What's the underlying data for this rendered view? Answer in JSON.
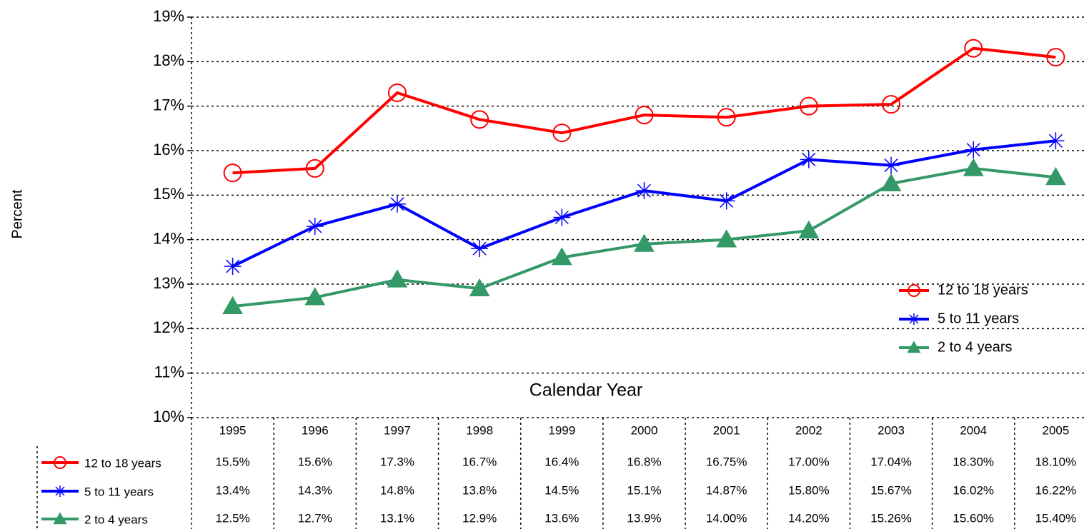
{
  "chart_data": {
    "type": "line",
    "y_label": "Percent",
    "x_label": "Calendar Year",
    "categories": [
      "1995",
      "1996",
      "1997",
      "1998",
      "1999",
      "2000",
      "2001",
      "2002",
      "2003",
      "2004",
      "2005"
    ],
    "series": [
      {
        "name": "12 to 18 years",
        "color": "#ff0000",
        "marker": "circle",
        "values": [
          15.5,
          15.6,
          17.3,
          16.7,
          16.4,
          16.8,
          16.75,
          17.0,
          17.04,
          18.3,
          18.1
        ],
        "value_labels": [
          "15.5%",
          "15.6%",
          "17.3%",
          "16.7%",
          "16.4%",
          "16.8%",
          "16.75%",
          "17.00%",
          "17.04%",
          "18.30%",
          "18.10%"
        ]
      },
      {
        "name": "5 to 11 years",
        "color": "#0000ff",
        "marker": "star",
        "values": [
          13.4,
          14.3,
          14.8,
          13.8,
          14.5,
          15.1,
          14.87,
          15.8,
          15.67,
          16.02,
          16.22
        ],
        "value_labels": [
          "13.4%",
          "14.3%",
          "14.8%",
          "13.8%",
          "14.5%",
          "15.1%",
          "14.87%",
          "15.80%",
          "15.67%",
          "16.02%",
          "16.22%"
        ]
      },
      {
        "name": "2 to 4 years",
        "color": "#339966",
        "marker": "triangle",
        "values": [
          12.5,
          12.7,
          13.1,
          12.9,
          13.6,
          13.9,
          14.0,
          14.2,
          15.26,
          15.6,
          15.4
        ],
        "value_labels": [
          "12.5%",
          "12.7%",
          "13.1%",
          "12.9%",
          "13.6%",
          "13.9%",
          "14.00%",
          "14.20%",
          "15.26%",
          "15.60%",
          "15.40%"
        ]
      }
    ],
    "ylim": [
      10,
      19
    ],
    "yticks": [
      {
        "value": 10,
        "label": "10%"
      },
      {
        "value": 11,
        "label": "11%"
      },
      {
        "value": 12,
        "label": "12%"
      },
      {
        "value": 13,
        "label": "13%"
      },
      {
        "value": 14,
        "label": "14%"
      },
      {
        "value": 15,
        "label": "15%"
      },
      {
        "value": 16,
        "label": "16%"
      },
      {
        "value": 17,
        "label": "17%"
      },
      {
        "value": 18,
        "label": "18%"
      },
      {
        "value": 19,
        "label": "19%"
      }
    ],
    "grid": true,
    "legend": "right"
  }
}
